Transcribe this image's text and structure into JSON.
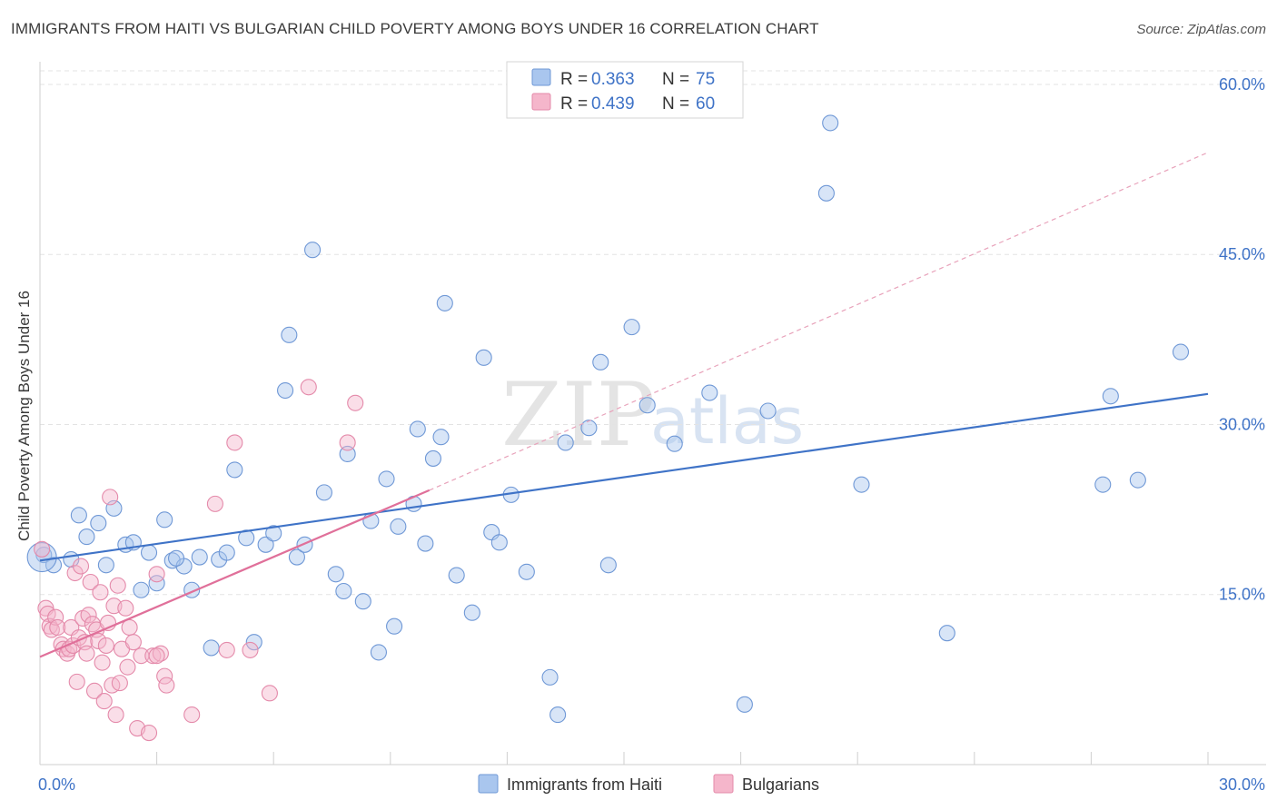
{
  "title": "IMMIGRANTS FROM HAITI VS BULGARIAN CHILD POVERTY AMONG BOYS UNDER 16 CORRELATION CHART",
  "source": "Source: ZipAtlas.com",
  "watermark": {
    "zip": "ZIP",
    "atlas": "atlas"
  },
  "colors": {
    "blue": "#3f73c7",
    "pink": "#e0709a",
    "blue_fill": "#a9c6ee",
    "pink_fill": "#f5b6cb"
  },
  "chart_data": {
    "type": "scatter",
    "title": "IMMIGRANTS FROM HAITI VS BULGARIAN CHILD POVERTY AMONG BOYS UNDER 16 CORRELATION CHART",
    "xlabel": "",
    "ylabel": "Child Poverty Among Boys Under 16",
    "xlim": [
      0,
      30
    ],
    "ylim": [
      0,
      62
    ],
    "x_tick_labels": [
      "0.0%",
      "30.0%"
    ],
    "y_ticks": [
      15,
      30,
      45,
      60
    ],
    "y_tick_labels": [
      "15.0%",
      "30.0%",
      "45.0%",
      "60.0%"
    ],
    "legend": [
      {
        "r_label": "R =",
        "r_value": "0.363",
        "n_label": "N =",
        "n_value": "75"
      },
      {
        "r_label": "R =",
        "r_value": "0.439",
        "n_label": "N =",
        "n_value": "60"
      }
    ],
    "series": [
      {
        "name": "Immigrants from Haiti",
        "color": "#3f73c7",
        "trend": {
          "x0": 0,
          "y0": 18.0,
          "x1": 30,
          "y1": 32.7,
          "style": "solid"
        },
        "points": [
          [
            0.1,
            18.5
          ],
          [
            0.35,
            17.6
          ],
          [
            0.8,
            18.1
          ],
          [
            1.0,
            22.0
          ],
          [
            1.2,
            20.1
          ],
          [
            1.5,
            21.3
          ],
          [
            1.7,
            17.6
          ],
          [
            1.9,
            22.6
          ],
          [
            2.2,
            19.4
          ],
          [
            2.4,
            19.6
          ],
          [
            2.6,
            15.4
          ],
          [
            2.8,
            18.7
          ],
          [
            3.0,
            16.0
          ],
          [
            3.2,
            21.6
          ],
          [
            3.4,
            18.0
          ],
          [
            3.7,
            17.5
          ],
          [
            3.9,
            15.4
          ],
          [
            4.1,
            18.3
          ],
          [
            4.4,
            10.3
          ],
          [
            4.6,
            18.1
          ],
          [
            4.8,
            18.7
          ],
          [
            5.0,
            26.0
          ],
          [
            5.3,
            20.0
          ],
          [
            5.5,
            10.8
          ],
          [
            5.8,
            19.4
          ],
          [
            6.0,
            20.4
          ],
          [
            6.3,
            33.0
          ],
          [
            6.4,
            37.9
          ],
          [
            6.6,
            18.3
          ],
          [
            6.8,
            19.4
          ],
          [
            7.0,
            45.4
          ],
          [
            7.3,
            24.0
          ],
          [
            7.6,
            16.8
          ],
          [
            7.8,
            15.3
          ],
          [
            7.9,
            27.4
          ],
          [
            8.3,
            14.4
          ],
          [
            8.5,
            21.5
          ],
          [
            8.7,
            9.9
          ],
          [
            8.9,
            25.2
          ],
          [
            9.1,
            12.2
          ],
          [
            9.2,
            21.0
          ],
          [
            9.6,
            23.0
          ],
          [
            9.7,
            29.6
          ],
          [
            9.9,
            19.5
          ],
          [
            10.1,
            27.0
          ],
          [
            10.3,
            28.9
          ],
          [
            10.4,
            40.7
          ],
          [
            10.7,
            16.7
          ],
          [
            11.1,
            13.4
          ],
          [
            11.4,
            35.9
          ],
          [
            11.6,
            20.5
          ],
          [
            11.8,
            19.6
          ],
          [
            12.1,
            23.8
          ],
          [
            12.5,
            17.0
          ],
          [
            13.1,
            7.7
          ],
          [
            13.3,
            4.4
          ],
          [
            13.5,
            28.4
          ],
          [
            14.1,
            29.7
          ],
          [
            14.4,
            35.5
          ],
          [
            14.6,
            17.6
          ],
          [
            15.2,
            38.6
          ],
          [
            15.6,
            31.7
          ],
          [
            16.3,
            28.3
          ],
          [
            17.2,
            32.8
          ],
          [
            18.1,
            5.3
          ],
          [
            18.7,
            31.2
          ],
          [
            20.2,
            50.4
          ],
          [
            20.3,
            56.6
          ],
          [
            21.1,
            24.7
          ],
          [
            23.3,
            11.6
          ],
          [
            27.3,
            24.7
          ],
          [
            27.5,
            32.5
          ],
          [
            28.2,
            25.1
          ],
          [
            29.3,
            36.4
          ],
          [
            3.5,
            18.2
          ]
        ]
      },
      {
        "name": "Bulgarians",
        "color": "#e0709a",
        "trend": {
          "x0": 0,
          "y0": 9.5,
          "x1": 10,
          "y1": 24.2,
          "style": "solid",
          "ext_x1": 30,
          "ext_y1": 54.0,
          "ext_style": "dashed"
        },
        "points": [
          [
            0.05,
            19.0
          ],
          [
            0.15,
            13.8
          ],
          [
            0.2,
            13.3
          ],
          [
            0.25,
            12.2
          ],
          [
            0.3,
            11.9
          ],
          [
            0.4,
            13.0
          ],
          [
            0.45,
            12.1
          ],
          [
            0.55,
            10.6
          ],
          [
            0.6,
            10.2
          ],
          [
            0.7,
            9.8
          ],
          [
            0.75,
            10.2
          ],
          [
            0.8,
            12.1
          ],
          [
            0.85,
            10.5
          ],
          [
            0.9,
            16.9
          ],
          [
            0.95,
            7.3
          ],
          [
            1.0,
            11.2
          ],
          [
            1.05,
            17.5
          ],
          [
            1.1,
            12.9
          ],
          [
            1.15,
            10.8
          ],
          [
            1.2,
            9.8
          ],
          [
            1.25,
            13.2
          ],
          [
            1.3,
            16.1
          ],
          [
            1.35,
            12.4
          ],
          [
            1.4,
            6.5
          ],
          [
            1.45,
            11.9
          ],
          [
            1.5,
            10.9
          ],
          [
            1.55,
            15.2
          ],
          [
            1.6,
            9.0
          ],
          [
            1.65,
            5.6
          ],
          [
            1.7,
            10.5
          ],
          [
            1.75,
            12.5
          ],
          [
            1.8,
            23.6
          ],
          [
            1.85,
            7.0
          ],
          [
            1.9,
            14.0
          ],
          [
            1.95,
            4.4
          ],
          [
            2.0,
            15.8
          ],
          [
            2.05,
            7.2
          ],
          [
            2.1,
            10.2
          ],
          [
            2.2,
            13.8
          ],
          [
            2.25,
            8.6
          ],
          [
            2.3,
            12.1
          ],
          [
            2.4,
            10.8
          ],
          [
            2.5,
            3.2
          ],
          [
            2.6,
            9.6
          ],
          [
            2.8,
            2.8
          ],
          [
            2.9,
            9.6
          ],
          [
            3.0,
            16.8
          ],
          [
            3.1,
            9.8
          ],
          [
            3.2,
            7.8
          ],
          [
            3.25,
            7.0
          ],
          [
            3.9,
            4.4
          ],
          [
            4.5,
            23.0
          ],
          [
            4.8,
            10.1
          ],
          [
            5.0,
            28.4
          ],
          [
            5.4,
            10.1
          ],
          [
            5.9,
            6.3
          ],
          [
            6.9,
            33.3
          ],
          [
            7.9,
            28.4
          ],
          [
            8.1,
            31.9
          ],
          [
            3.0,
            9.6
          ]
        ]
      }
    ]
  },
  "bottom_legend": {
    "blue": "Immigrants from Haiti",
    "pink": "Bulgarians"
  }
}
